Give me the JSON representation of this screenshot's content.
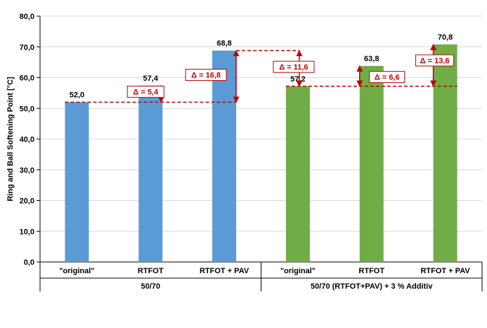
{
  "chart_data": {
    "type": "bar",
    "ylabel": "Ring and Ball Softening Point [°C]",
    "ylim": [
      0,
      80
    ],
    "yticks": [
      "0,0",
      "10,0",
      "20,0",
      "30,0",
      "40,0",
      "50,0",
      "60,0",
      "70,0",
      "80,0"
    ],
    "groups": [
      {
        "name": "50/70",
        "color": "#5b9bd5",
        "categories": [
          "\"original\"",
          "RTFOT",
          "RTFOT + PAV"
        ],
        "values": [
          52.0,
          57.4,
          68.8
        ],
        "labels": [
          "52,0",
          "57,4",
          "68,8"
        ]
      },
      {
        "name": "50/70 (RTFOT+PAV) + 3 %  Additiv",
        "color": "#70ad47",
        "categories": [
          "\"original\"",
          "RTFOT",
          "RTFOT + PAV"
        ],
        "values": [
          57.2,
          63.8,
          70.8
        ],
        "labels": [
          "57,2",
          "63,8",
          "70,8"
        ]
      }
    ],
    "annotations": [
      {
        "text": "Δ = 5,4",
        "from": 52.0,
        "to": 57.4
      },
      {
        "text": "Δ = 16,8",
        "from": 52.0,
        "to": 68.8
      },
      {
        "text": "Δ = 11,6",
        "from": 57.2,
        "to": 68.8
      },
      {
        "text": "Δ = 6,6",
        "from": 57.2,
        "to": 63.8
      },
      {
        "text": "Δ = 13,6",
        "from": 57.2,
        "to": 70.8
      }
    ],
    "grid": true,
    "legend": "none"
  }
}
